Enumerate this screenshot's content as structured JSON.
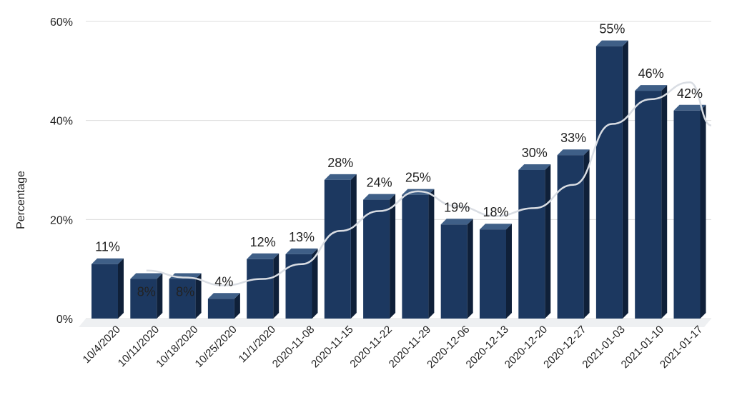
{
  "chart_data": {
    "type": "bar",
    "categories": [
      "10/4/2020",
      "10/11/2020",
      "10/18/2020",
      "10/25/2020",
      "11/1/2020",
      "2020-11-08",
      "2020-11-15",
      "2020-11-22",
      "2020-11-29",
      "2020-12-06",
      "2020-12-13",
      "2020-12-20",
      "2020-12-27",
      "2021-01-03",
      "2021-01-10",
      "2021-01-17"
    ],
    "values": [
      11,
      8,
      8,
      4,
      12,
      13,
      28,
      24,
      25,
      19,
      18,
      30,
      33,
      55,
      46,
      42
    ],
    "data_labels": [
      "11%",
      "8%",
      "8%",
      "4%",
      "12%",
      "13%",
      "28%",
      "24%",
      "25%",
      "19%",
      "18%",
      "30%",
      "33%",
      "55%",
      "46%",
      "42%"
    ],
    "trend_line": [
      null,
      9.7,
      8.3,
      6.7,
      8.0,
      11.0,
      17.7,
      21.7,
      25.7,
      22.7,
      20.7,
      22.3,
      27.0,
      39.3,
      44.3,
      47.7
    ],
    "ylabel": "Percentage",
    "xlabel": "",
    "ylim": [
      0,
      60
    ],
    "yticks": [
      0,
      20,
      40,
      60
    ],
    "ytick_labels": [
      "0%",
      "20%",
      "40%",
      "60%"
    ],
    "grid": true,
    "legend": "none",
    "colors": {
      "bar_front": "#1c3860",
      "bar_top": "#3f5f87",
      "bar_side": "#0f2039",
      "trend": "#d9dde3",
      "grid": "#dcdcdc",
      "floor": "#eef0f2"
    }
  }
}
